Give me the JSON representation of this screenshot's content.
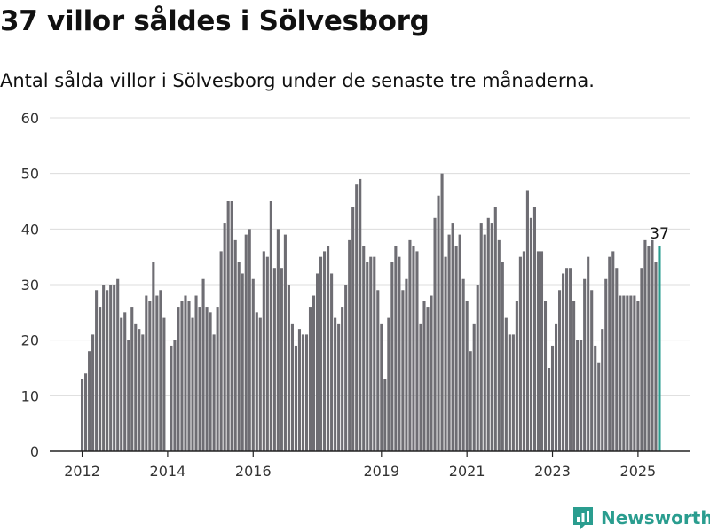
{
  "header": {
    "title": "37 villor såldes i Sölvesborg",
    "subtitle": "Antal sålda villor i Sölvesborg under de senaste tre månaderna."
  },
  "brand": {
    "name": "Newsworthy"
  },
  "colors": {
    "bar": "#6e6d73",
    "highlight": "#2a9d8f",
    "grid": "#dcdcdc",
    "axis": "#222222"
  },
  "chart_data": {
    "type": "bar",
    "title": "",
    "xlabel": "",
    "ylabel": "",
    "ylim": [
      0,
      60
    ],
    "yticks": [
      0,
      10,
      20,
      30,
      40,
      50,
      60
    ],
    "xticks": [
      "2012",
      "2014",
      "2016",
      "2019",
      "2021",
      "2023",
      "2025"
    ],
    "grid": true,
    "series": [
      {
        "values": [
          13,
          14,
          18,
          21,
          29,
          26,
          30,
          29,
          30,
          30,
          31,
          24,
          25,
          20,
          26,
          23,
          22,
          21,
          28,
          27,
          34,
          28,
          29,
          24,
          null,
          19,
          20,
          26,
          27,
          28,
          27,
          24,
          28,
          26,
          31,
          26,
          25,
          21,
          26,
          36,
          41,
          45,
          45,
          38,
          34,
          32,
          39,
          40,
          31,
          25,
          24,
          36,
          35,
          45,
          33,
          40,
          33,
          39,
          30,
          23,
          19,
          22,
          21,
          21,
          26,
          28,
          32,
          35,
          36,
          37,
          32,
          24,
          23,
          26,
          30,
          38,
          44,
          48,
          49,
          37,
          34,
          35,
          35,
          29,
          23,
          13,
          24,
          34,
          37,
          35,
          29,
          31,
          38,
          37,
          36,
          23,
          27,
          26,
          28,
          42,
          46,
          50,
          35,
          39,
          41,
          37,
          39,
          31,
          27,
          18,
          23,
          30,
          41,
          39,
          42,
          41,
          44,
          38,
          34,
          24,
          21,
          21,
          27,
          35,
          36,
          47,
          42,
          44,
          36,
          36,
          27,
          15,
          19,
          23,
          29,
          32,
          33,
          33,
          27,
          20,
          20,
          31,
          35,
          29,
          19,
          16,
          22,
          31,
          35,
          36,
          33,
          28,
          28,
          28,
          28,
          28,
          27,
          33,
          38,
          37,
          38,
          34,
          37
        ]
      }
    ],
    "highlight_label": "37"
  }
}
